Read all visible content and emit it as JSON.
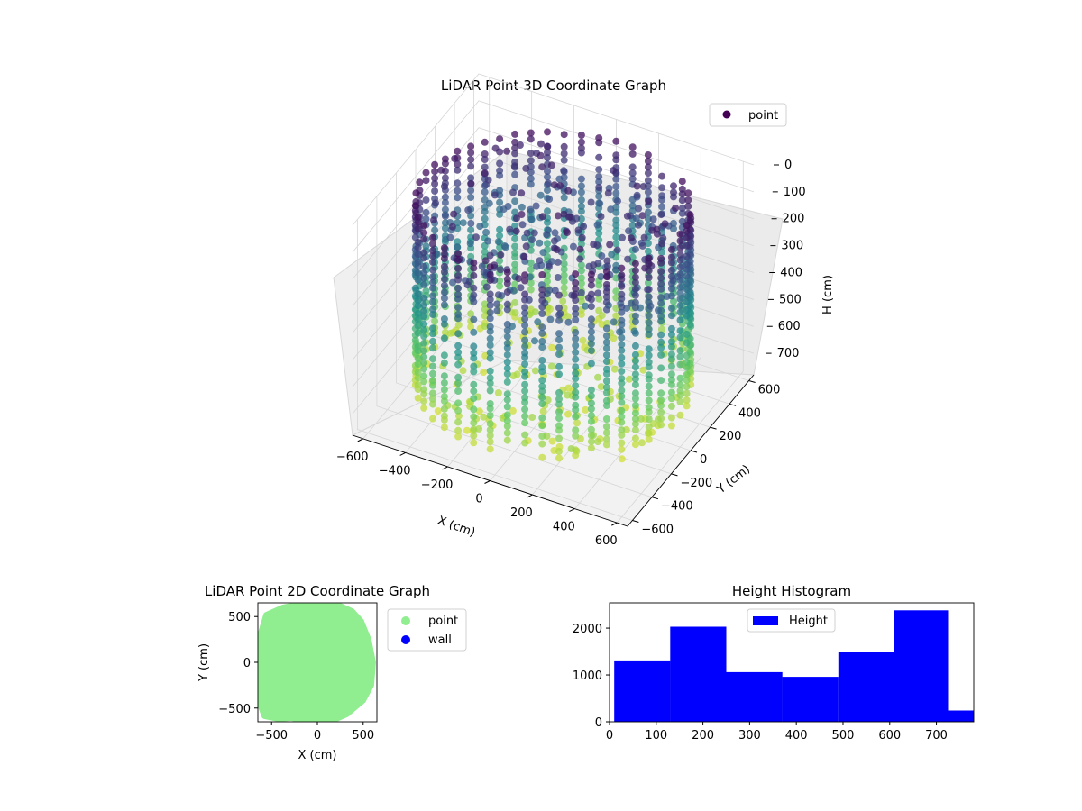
{
  "chart_data": [
    {
      "type": "scatter",
      "projection": "3d",
      "title": "LiDAR Point 3D Coordinate Graph",
      "xlabel": "X (cm)",
      "ylabel": "Y (cm)",
      "zlabel": "H (cm)",
      "xlim": [
        -650,
        650
      ],
      "ylim": [
        -650,
        650
      ],
      "zlim": [
        780,
        0
      ],
      "z_inverted": true,
      "xticks": [
        -600,
        -400,
        -200,
        0,
        200,
        400,
        600
      ],
      "yticks": [
        -600,
        -400,
        -200,
        0,
        200,
        400,
        600
      ],
      "zticks": [
        0,
        100,
        200,
        300,
        400,
        500,
        600,
        700
      ],
      "colormap": "viridis",
      "color_by": "height",
      "grid": true,
      "legend": {
        "placement": "upper-right",
        "entries": [
          {
            "label": "point",
            "color": "#440154"
          }
        ]
      },
      "shape": "roughly cylindrical room: wall radius ~600 cm, heights 0-780 cm, floor near 700 cm, ceiling clutter near 0-200 cm"
    },
    {
      "type": "scatter",
      "title": "LiDAR Point 2D Coordinate Graph",
      "xlabel": "X (cm)",
      "ylabel": "Y (cm)",
      "xlim": [
        -650,
        650
      ],
      "ylim": [
        -650,
        650
      ],
      "xticks": [
        -500,
        0,
        500
      ],
      "yticks": [
        -500,
        0,
        500
      ],
      "series": [
        {
          "name": "point",
          "color": "#90ee90",
          "boundary_xy": [
            [
              -560,
              520
            ],
            [
              -380,
              600
            ],
            [
              -180,
              640
            ],
            [
              0,
              650
            ],
            [
              200,
              640
            ],
            [
              380,
              560
            ],
            [
              480,
              450
            ],
            [
              560,
              250
            ],
            [
              610,
              0
            ],
            [
              590,
              -250
            ],
            [
              500,
              -420
            ],
            [
              320,
              -570
            ],
            [
              120,
              -660
            ],
            [
              -120,
              -660
            ],
            [
              -280,
              -610
            ],
            [
              -420,
              -620
            ],
            [
              -580,
              -590
            ],
            [
              -650,
              -400
            ],
            [
              -640,
              -200
            ],
            [
              -650,
              0
            ],
            [
              -640,
              250
            ]
          ]
        },
        {
          "name": "wall",
          "color": "#0000ff",
          "boundary_xy": []
        }
      ],
      "legend": {
        "placement": "outside-right"
      }
    },
    {
      "type": "bar",
      "title": "Height Histogram",
      "xlabel": "",
      "ylabel": "",
      "xlim": [
        0,
        780
      ],
      "ylim": [
        0,
        2540
      ],
      "xticks": [
        0,
        100,
        200,
        300,
        400,
        500,
        600,
        700
      ],
      "yticks": [
        0,
        1000,
        2000
      ],
      "bin_edges": [
        10,
        130,
        250,
        370,
        490,
        610,
        725,
        780
      ],
      "series": [
        {
          "name": "Height",
          "color": "#0000ff",
          "values": [
            1310,
            2030,
            1060,
            960,
            1500,
            2380,
            240
          ]
        }
      ],
      "legend": {
        "placement": "top-center"
      }
    }
  ]
}
